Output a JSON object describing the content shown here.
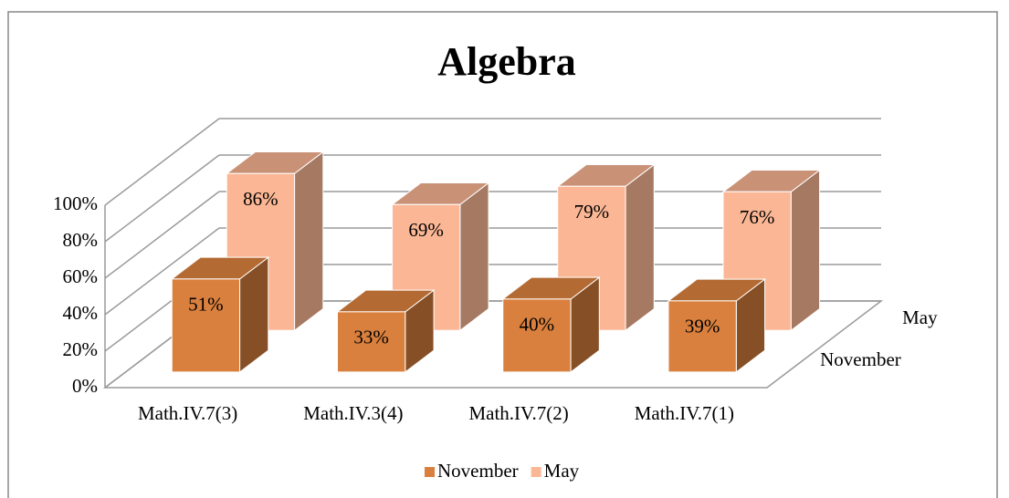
{
  "chart_data": {
    "type": "bar3d",
    "title": "Algebra",
    "categories": [
      "Math.IV.7(3)",
      "Math.IV.3(4)",
      "Math.IV.7(2)",
      "Math.IV.7(1)"
    ],
    "series": [
      {
        "name": "November",
        "color": "#d9803e",
        "values": [
          51,
          33,
          40,
          39
        ],
        "value_labels": [
          "51%",
          "33%",
          "40%",
          "39%"
        ]
      },
      {
        "name": "May",
        "color": "#fbb795",
        "values": [
          86,
          69,
          79,
          76
        ],
        "value_labels": [
          "86%",
          "69%",
          "79%",
          "76%"
        ]
      }
    ],
    "ylim": [
      0,
      100
    ],
    "yticks": [
      {
        "value": 0,
        "label": "0%"
      },
      {
        "value": 20,
        "label": "20%"
      },
      {
        "value": 40,
        "label": "40%"
      },
      {
        "value": 60,
        "label": "60%"
      },
      {
        "value": 80,
        "label": "80%"
      },
      {
        "value": 100,
        "label": "100%"
      }
    ],
    "grid": true,
    "legend": "bottom"
  }
}
